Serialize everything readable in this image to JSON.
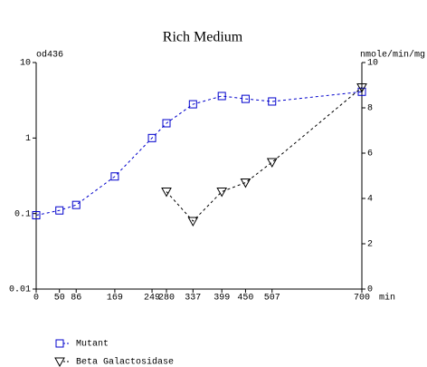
{
  "chart_data": {
    "type": "line",
    "title": "Rich Medium",
    "xlabel": "min",
    "ylabel": "od436",
    "y2label": "nmole/min/mg",
    "xlim": [
      0,
      700
    ],
    "xticks": [
      0,
      50,
      86,
      169,
      249,
      280,
      337,
      399,
      450,
      507,
      700
    ],
    "ylim": [
      0.01,
      10
    ],
    "yticks": [
      0.01,
      0.1,
      1,
      10
    ],
    "yscale": "log",
    "y2lim": [
      0,
      10
    ],
    "y2ticks": [
      0,
      2,
      4,
      6,
      8,
      10
    ],
    "legend": "bottom-left",
    "series": [
      {
        "name": "Mutant",
        "color": "#0000cc",
        "marker": "square",
        "dash": true,
        "x": [
          0,
          50,
          86,
          169,
          249,
          280,
          337,
          399,
          450,
          507,
          700
        ],
        "values": [
          0.095,
          0.11,
          0.13,
          0.31,
          1.0,
          1.57,
          2.8,
          3.6,
          3.3,
          3.05,
          4.1
        ]
      },
      {
        "name": "Beta Galactosidase",
        "color": "#000000",
        "marker": "triangle-down",
        "dash": true,
        "axis": "y2",
        "x": [
          280,
          337,
          399,
          450,
          507,
          700
        ],
        "values": [
          4.3,
          3.0,
          4.3,
          4.7,
          5.6,
          8.9
        ]
      }
    ]
  }
}
